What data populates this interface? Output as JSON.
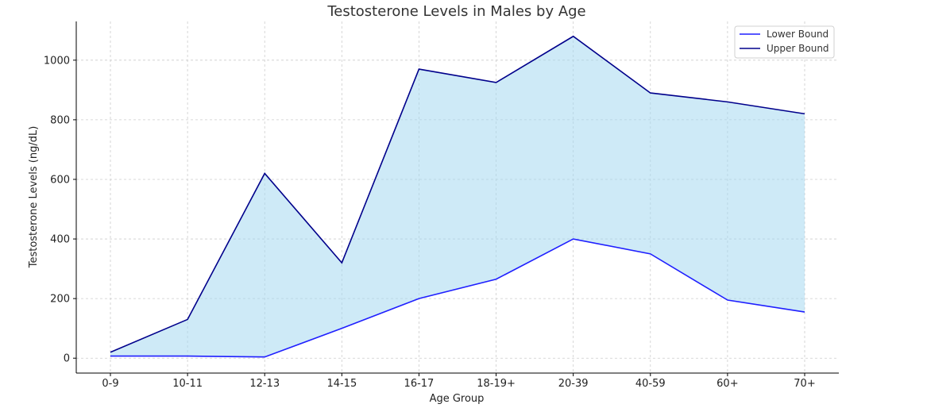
{
  "chart_data": {
    "type": "area",
    "title": "Testosterone Levels in Males by Age",
    "xlabel": "Age Group",
    "ylabel": "Testosterone Levels (ng/dL)",
    "categories": [
      "0-9",
      "10-11",
      "12-13",
      "14-15",
      "16-17",
      "18-19+",
      "20-39",
      "40-59",
      "60+",
      "70+"
    ],
    "series": [
      {
        "name": "Lower Bound",
        "values": [
          7,
          7,
          4,
          100,
          200,
          265,
          400,
          350,
          195,
          155
        ],
        "color": "#1f1fff"
      },
      {
        "name": "Upper Bound",
        "values": [
          20,
          130,
          620,
          320,
          970,
          925,
          1080,
          890,
          860,
          820
        ],
        "color": "#00008b"
      }
    ],
    "fill_color": "#a6d8f0",
    "ylim": [
      -50,
      1130
    ],
    "yticks": [
      0,
      200,
      400,
      600,
      800,
      1000
    ],
    "grid": true,
    "legend_position": "top-right"
  }
}
